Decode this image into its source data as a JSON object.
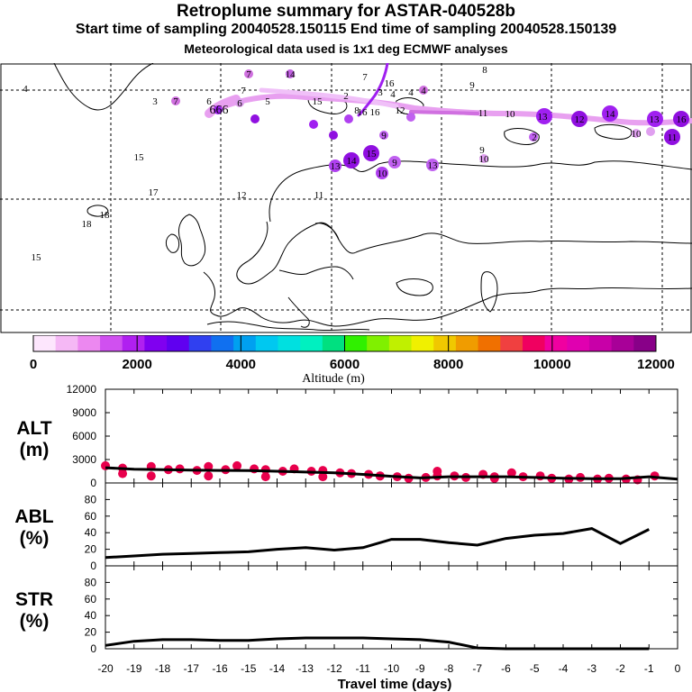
{
  "header": {
    "title": "Retroplume summary for ASTAR-040528b",
    "sampling": "Start time of sampling 20040528.150115     End time of sampling 20040528.150139",
    "meteo": "Meteorological data used is 1x1 deg ECMWF analyses"
  },
  "colors": {
    "coastline": "#000000",
    "grid": "#000000",
    "plume": "#e8a0f0",
    "plume_core": "#a020f0",
    "data_marker": "#e8004c",
    "line": "#000000"
  },
  "map_labels": [
    {
      "text": "7"
    },
    {
      "text": "14"
    },
    {
      "text": "7"
    },
    {
      "text": "16"
    },
    {
      "text": "8"
    },
    {
      "text": "4"
    },
    {
      "text": "7"
    },
    {
      "text": "9"
    },
    {
      "text": "3"
    },
    {
      "text": "7"
    },
    {
      "text": "6"
    },
    {
      "text": "5"
    },
    {
      "text": "15"
    },
    {
      "text": "2"
    },
    {
      "text": "3"
    },
    {
      "text": "4"
    },
    {
      "text": "4"
    },
    {
      "text": "4"
    },
    {
      "text": "666"
    },
    {
      "text": "6"
    },
    {
      "text": "12"
    },
    {
      "text": "11"
    },
    {
      "text": "10"
    },
    {
      "text": "13"
    },
    {
      "text": "12"
    },
    {
      "text": "14"
    },
    {
      "text": "13"
    },
    {
      "text": "16"
    },
    {
      "text": "8"
    },
    {
      "text": "16"
    },
    {
      "text": "16"
    },
    {
      "text": "9"
    },
    {
      "text": "2"
    },
    {
      "text": "10"
    },
    {
      "text": "11"
    },
    {
      "text": "15"
    },
    {
      "text": "13"
    },
    {
      "text": "14"
    },
    {
      "text": "15"
    },
    {
      "text": "9"
    },
    {
      "text": "13"
    },
    {
      "text": "10"
    },
    {
      "text": "9"
    },
    {
      "text": "10"
    },
    {
      "text": "17"
    },
    {
      "text": "12"
    },
    {
      "text": "11"
    },
    {
      "text": "18"
    },
    {
      "text": "18"
    },
    {
      "text": "15"
    }
  ],
  "map_dots": [
    {
      "size": "small",
      "color": "#d070e0"
    },
    {
      "size": "small",
      "color": "#c060e0"
    },
    {
      "size": "small",
      "color": "#9010e0"
    },
    {
      "size": "small",
      "color": "#d070e0"
    },
    {
      "size": "large",
      "color": "#a020f0"
    },
    {
      "size": "large",
      "color": "#9010e0"
    },
    {
      "size": "large",
      "color": "#a020f0"
    },
    {
      "size": "large",
      "color": "#a020f0"
    },
    {
      "size": "large",
      "color": "#9010e0"
    },
    {
      "size": "large",
      "color": "#9010e0"
    },
    {
      "size": "large",
      "color": "#9010e0"
    },
    {
      "size": "large",
      "color": "#9010e0"
    },
    {
      "size": "medium",
      "color": "#b040f0"
    },
    {
      "size": "medium",
      "color": "#b040f0"
    },
    {
      "size": "medium",
      "color": "#c060f0"
    },
    {
      "size": "medium",
      "color": "#c060f0"
    },
    {
      "size": "small",
      "color": "#e0a0f0"
    },
    {
      "size": "small",
      "color": "#9010e0"
    },
    {
      "size": "small",
      "color": "#a020f0"
    },
    {
      "size": "small",
      "color": "#b040f0"
    },
    {
      "size": "small",
      "color": "#c060f0"
    },
    {
      "size": "small",
      "color": "#d070e0"
    },
    {
      "size": "small",
      "color": "#a020f0"
    },
    {
      "size": "small",
      "color": "#e0a0f0"
    },
    {
      "size": "small",
      "color": "#e0a0f0"
    },
    {
      "size": "small",
      "color": "#e0a0f0"
    },
    {
      "size": "small",
      "color": "#c060f0"
    },
    {
      "size": "small",
      "color": "#c060f0"
    }
  ],
  "colorbar": {
    "label": "Altitude (m)",
    "ticks": [
      "0",
      "2000",
      "4000",
      "6000",
      "8000",
      "10000",
      "12000"
    ],
    "colors": [
      "#fde6fd",
      "#f5b8f5",
      "#ec88f0",
      "#d050f0",
      "#b020f0",
      "#8000f0",
      "#6000f0",
      "#3040f0",
      "#1070f0",
      "#00a0f0",
      "#00c8f0",
      "#00e0e0",
      "#00f0c0",
      "#00e080",
      "#30f000",
      "#80f000",
      "#c0f000",
      "#f0f000",
      "#f0c800",
      "#f09c00",
      "#f07000",
      "#f04040",
      "#f00060",
      "#f000a0",
      "#e000b0",
      "#c800a8",
      "#a80098",
      "#880088"
    ]
  },
  "chart_data": [
    {
      "type": "scatter",
      "title": "ALT",
      "ylabel": "(m)",
      "ylim": [
        0,
        12000
      ],
      "yticks": [
        "0",
        "3000",
        "6000",
        "9000",
        "12000"
      ],
      "line": {
        "x": [
          -20,
          -19,
          -18,
          -17,
          -16,
          -15,
          -14,
          -13,
          -12,
          -11,
          -10,
          -9,
          -8,
          -7,
          -6,
          -5,
          -4,
          -3,
          -2,
          -1,
          0
        ],
        "y": [
          1950,
          1750,
          1700,
          1650,
          1600,
          1580,
          1500,
          1400,
          1300,
          1100,
          850,
          650,
          800,
          800,
          800,
          700,
          600,
          550,
          550,
          800,
          500
        ]
      },
      "markers": {
        "x": [
          -20,
          -19.4,
          -18.4,
          -17.8,
          -17.4,
          -16.8,
          -16.4,
          -15.8,
          -15.4,
          -14.8,
          -14.4,
          -13.8,
          -13.4,
          -12.8,
          -12.4,
          -11.8,
          -11.4,
          -10.8,
          -10.4,
          -9.8,
          -9.4,
          -8.8,
          -8.4,
          -7.8,
          -7.4,
          -6.8,
          -6.4,
          -5.8,
          -5.4,
          -4.8,
          -4.4,
          -3.8,
          -3.4,
          -2.8,
          -2.4,
          -1.8,
          -1.4,
          -0.8,
          -19.4,
          -18.4,
          -16.4,
          -14.4,
          -12.4,
          -10.4,
          -8.4,
          -6.4
        ],
        "y": [
          2200,
          1900,
          2100,
          1700,
          1800,
          1600,
          2100,
          1700,
          2200,
          1800,
          1700,
          1500,
          1800,
          1500,
          1600,
          1300,
          1200,
          1100,
          900,
          800,
          600,
          700,
          1500,
          900,
          700,
          1100,
          600,
          1300,
          800,
          900,
          600,
          500,
          700,
          500,
          600,
          500,
          400,
          900,
          1200,
          900,
          900,
          800,
          800,
          900,
          900,
          800
        ]
      },
      "xlim": [
        -20,
        0
      ]
    },
    {
      "type": "line",
      "title": "ABL",
      "ylabel": "(%)",
      "ylim": [
        0,
        100
      ],
      "yticks": [
        "0",
        "20",
        "40",
        "60",
        "80"
      ],
      "x": [
        -20,
        -19,
        -18,
        -17,
        -16,
        -15,
        -14,
        -13,
        -12,
        -11,
        -10,
        -9,
        -8,
        -7,
        -6,
        -5,
        -4,
        -3,
        -2,
        -1
      ],
      "y": [
        10,
        12,
        14,
        15,
        16,
        17,
        20,
        22,
        19,
        22,
        32,
        32,
        28,
        25,
        33,
        37,
        39,
        45,
        27,
        44
      ],
      "xlim": [
        -20,
        0
      ]
    },
    {
      "type": "line",
      "title": "STR",
      "ylabel": "(%)",
      "ylim": [
        0,
        100
      ],
      "yticks": [
        "0",
        "20",
        "40",
        "60",
        "80"
      ],
      "x": [
        -20,
        -19,
        -18,
        -17,
        -16,
        -15,
        -14,
        -13,
        -12,
        -11,
        -10,
        -9,
        -8,
        -7,
        -6,
        -5,
        -4,
        -3,
        -2,
        -1
      ],
      "y": [
        4,
        9,
        11,
        11,
        10,
        10,
        12,
        13,
        13,
        13,
        12,
        11,
        8,
        1,
        0,
        0,
        0,
        0,
        0,
        0
      ],
      "xlim": [
        -20,
        0
      ]
    }
  ],
  "xaxis": {
    "ticks": [
      "-20",
      "-19",
      "-18",
      "-17",
      "-16",
      "-15",
      "-14",
      "-13",
      "-12",
      "-11",
      "-10",
      "-9",
      "-8",
      "-7",
      "-6",
      "-5",
      "-4",
      "-3",
      "-2",
      "-1",
      "0"
    ],
    "label": "Travel time (days)"
  }
}
